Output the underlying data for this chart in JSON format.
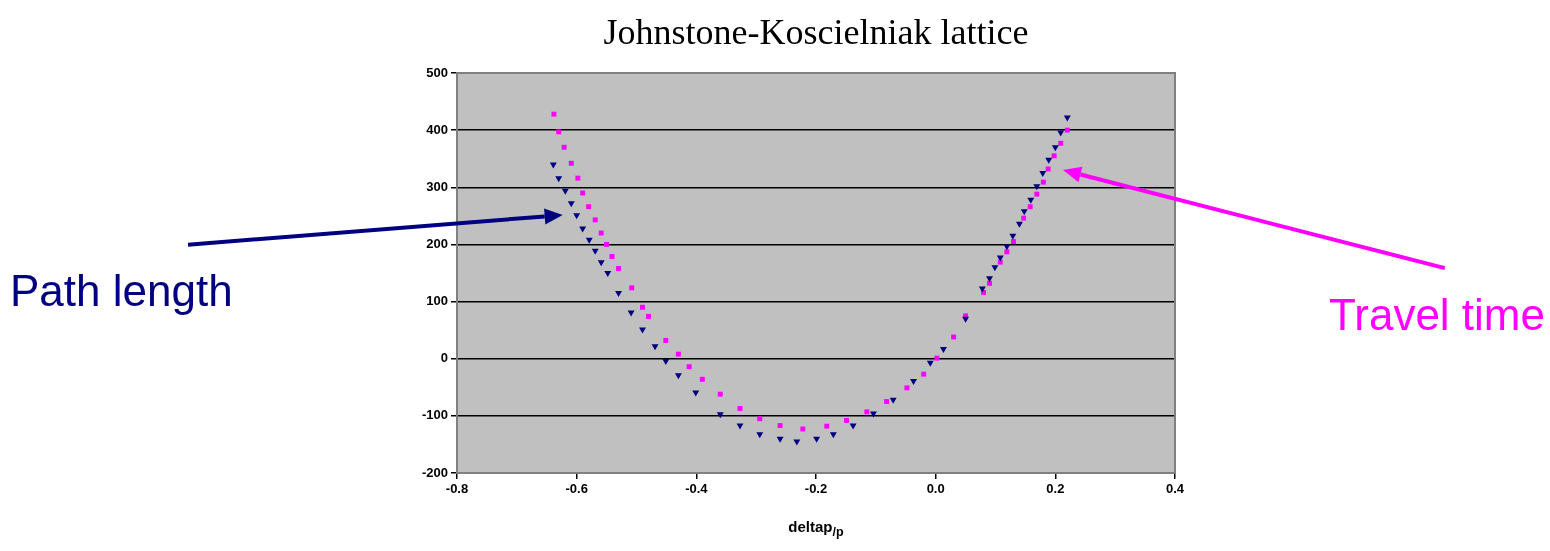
{
  "chart_data": {
    "type": "scatter",
    "title": "Johnstone-Koscielniak lattice",
    "xlabel": "deltap$_{/p}$",
    "xlim": [
      -0.8,
      0.4
    ],
    "xticks": [
      {
        "value": -0.8,
        "label": "-0.8"
      },
      {
        "value": -0.6,
        "label": "-0.6"
      },
      {
        "value": -0.4,
        "label": "-0.4"
      },
      {
        "value": -0.2,
        "label": "-0.2"
      },
      {
        "value": 0,
        "label": "0.0"
      },
      {
        "value": 0.2,
        "label": "0.2"
      },
      {
        "value": 0.4,
        "label": "0.4"
      }
    ],
    "ylim": [
      -200,
      500
    ],
    "yticks": [
      -200,
      -100,
      0,
      100,
      200,
      300,
      400,
      500
    ],
    "grid": "y",
    "legend": false,
    "series": [
      {
        "name": "Path length",
        "color": "#000080",
        "marker": "triangle",
        "x": [
          -0.639,
          -0.63,
          -0.619,
          -0.609,
          -0.6,
          -0.59,
          -0.579,
          -0.569,
          -0.559,
          -0.548,
          -0.53,
          -0.509,
          -0.49,
          -0.469,
          -0.451,
          -0.43,
          -0.401,
          -0.36,
          -0.327,
          -0.294,
          -0.26,
          -0.232,
          -0.199,
          -0.171,
          -0.138,
          -0.104,
          -0.071,
          -0.037,
          -0.009,
          0.013,
          0.05,
          0.078,
          0.09,
          0.099,
          0.108,
          0.119,
          0.129,
          0.14,
          0.148,
          0.159,
          0.169,
          0.179,
          0.189,
          0.2,
          0.209,
          0.22
        ],
        "values": [
          340,
          316,
          294,
          272,
          251,
          228,
          208,
          189,
          169,
          150,
          115,
          81,
          51,
          22,
          -4,
          -29,
          -59,
          -97,
          -117,
          -132,
          -140,
          -145,
          -140,
          -132,
          -117,
          -96,
          -72,
          -39,
          -7,
          17,
          70,
          123,
          141,
          160,
          177,
          197,
          215,
          236,
          258,
          278,
          302,
          325,
          348,
          370,
          396,
          422
        ]
      },
      {
        "name": "Travel time",
        "color": "#ff00ff",
        "marker": "square",
        "x": [
          -0.638,
          -0.63,
          -0.621,
          -0.609,
          -0.598,
          -0.59,
          -0.58,
          -0.569,
          -0.559,
          -0.55,
          -0.541,
          -0.53,
          -0.508,
          -0.49,
          -0.48,
          -0.451,
          -0.43,
          -0.412,
          -0.39,
          -0.36,
          -0.327,
          -0.294,
          -0.26,
          -0.222,
          -0.182,
          -0.149,
          -0.115,
          -0.082,
          -0.048,
          -0.02,
          0.002,
          0.03,
          0.05,
          0.08,
          0.09,
          0.108,
          0.119,
          0.13,
          0.147,
          0.158,
          0.169,
          0.18,
          0.188,
          0.198,
          0.209,
          0.22
        ],
        "values": [
          428,
          397,
          370,
          342,
          316,
          290,
          266,
          243,
          220,
          200,
          179,
          158,
          124,
          90,
          74,
          32,
          8,
          -14,
          -36,
          -62,
          -87,
          -105,
          -117,
          -123,
          -118,
          -108,
          -93,
          -75,
          -51,
          -27,
          1,
          38,
          75,
          116,
          132,
          169,
          187,
          205,
          246,
          266,
          288,
          309,
          332,
          355,
          377,
          400
        ]
      }
    ]
  }
}
